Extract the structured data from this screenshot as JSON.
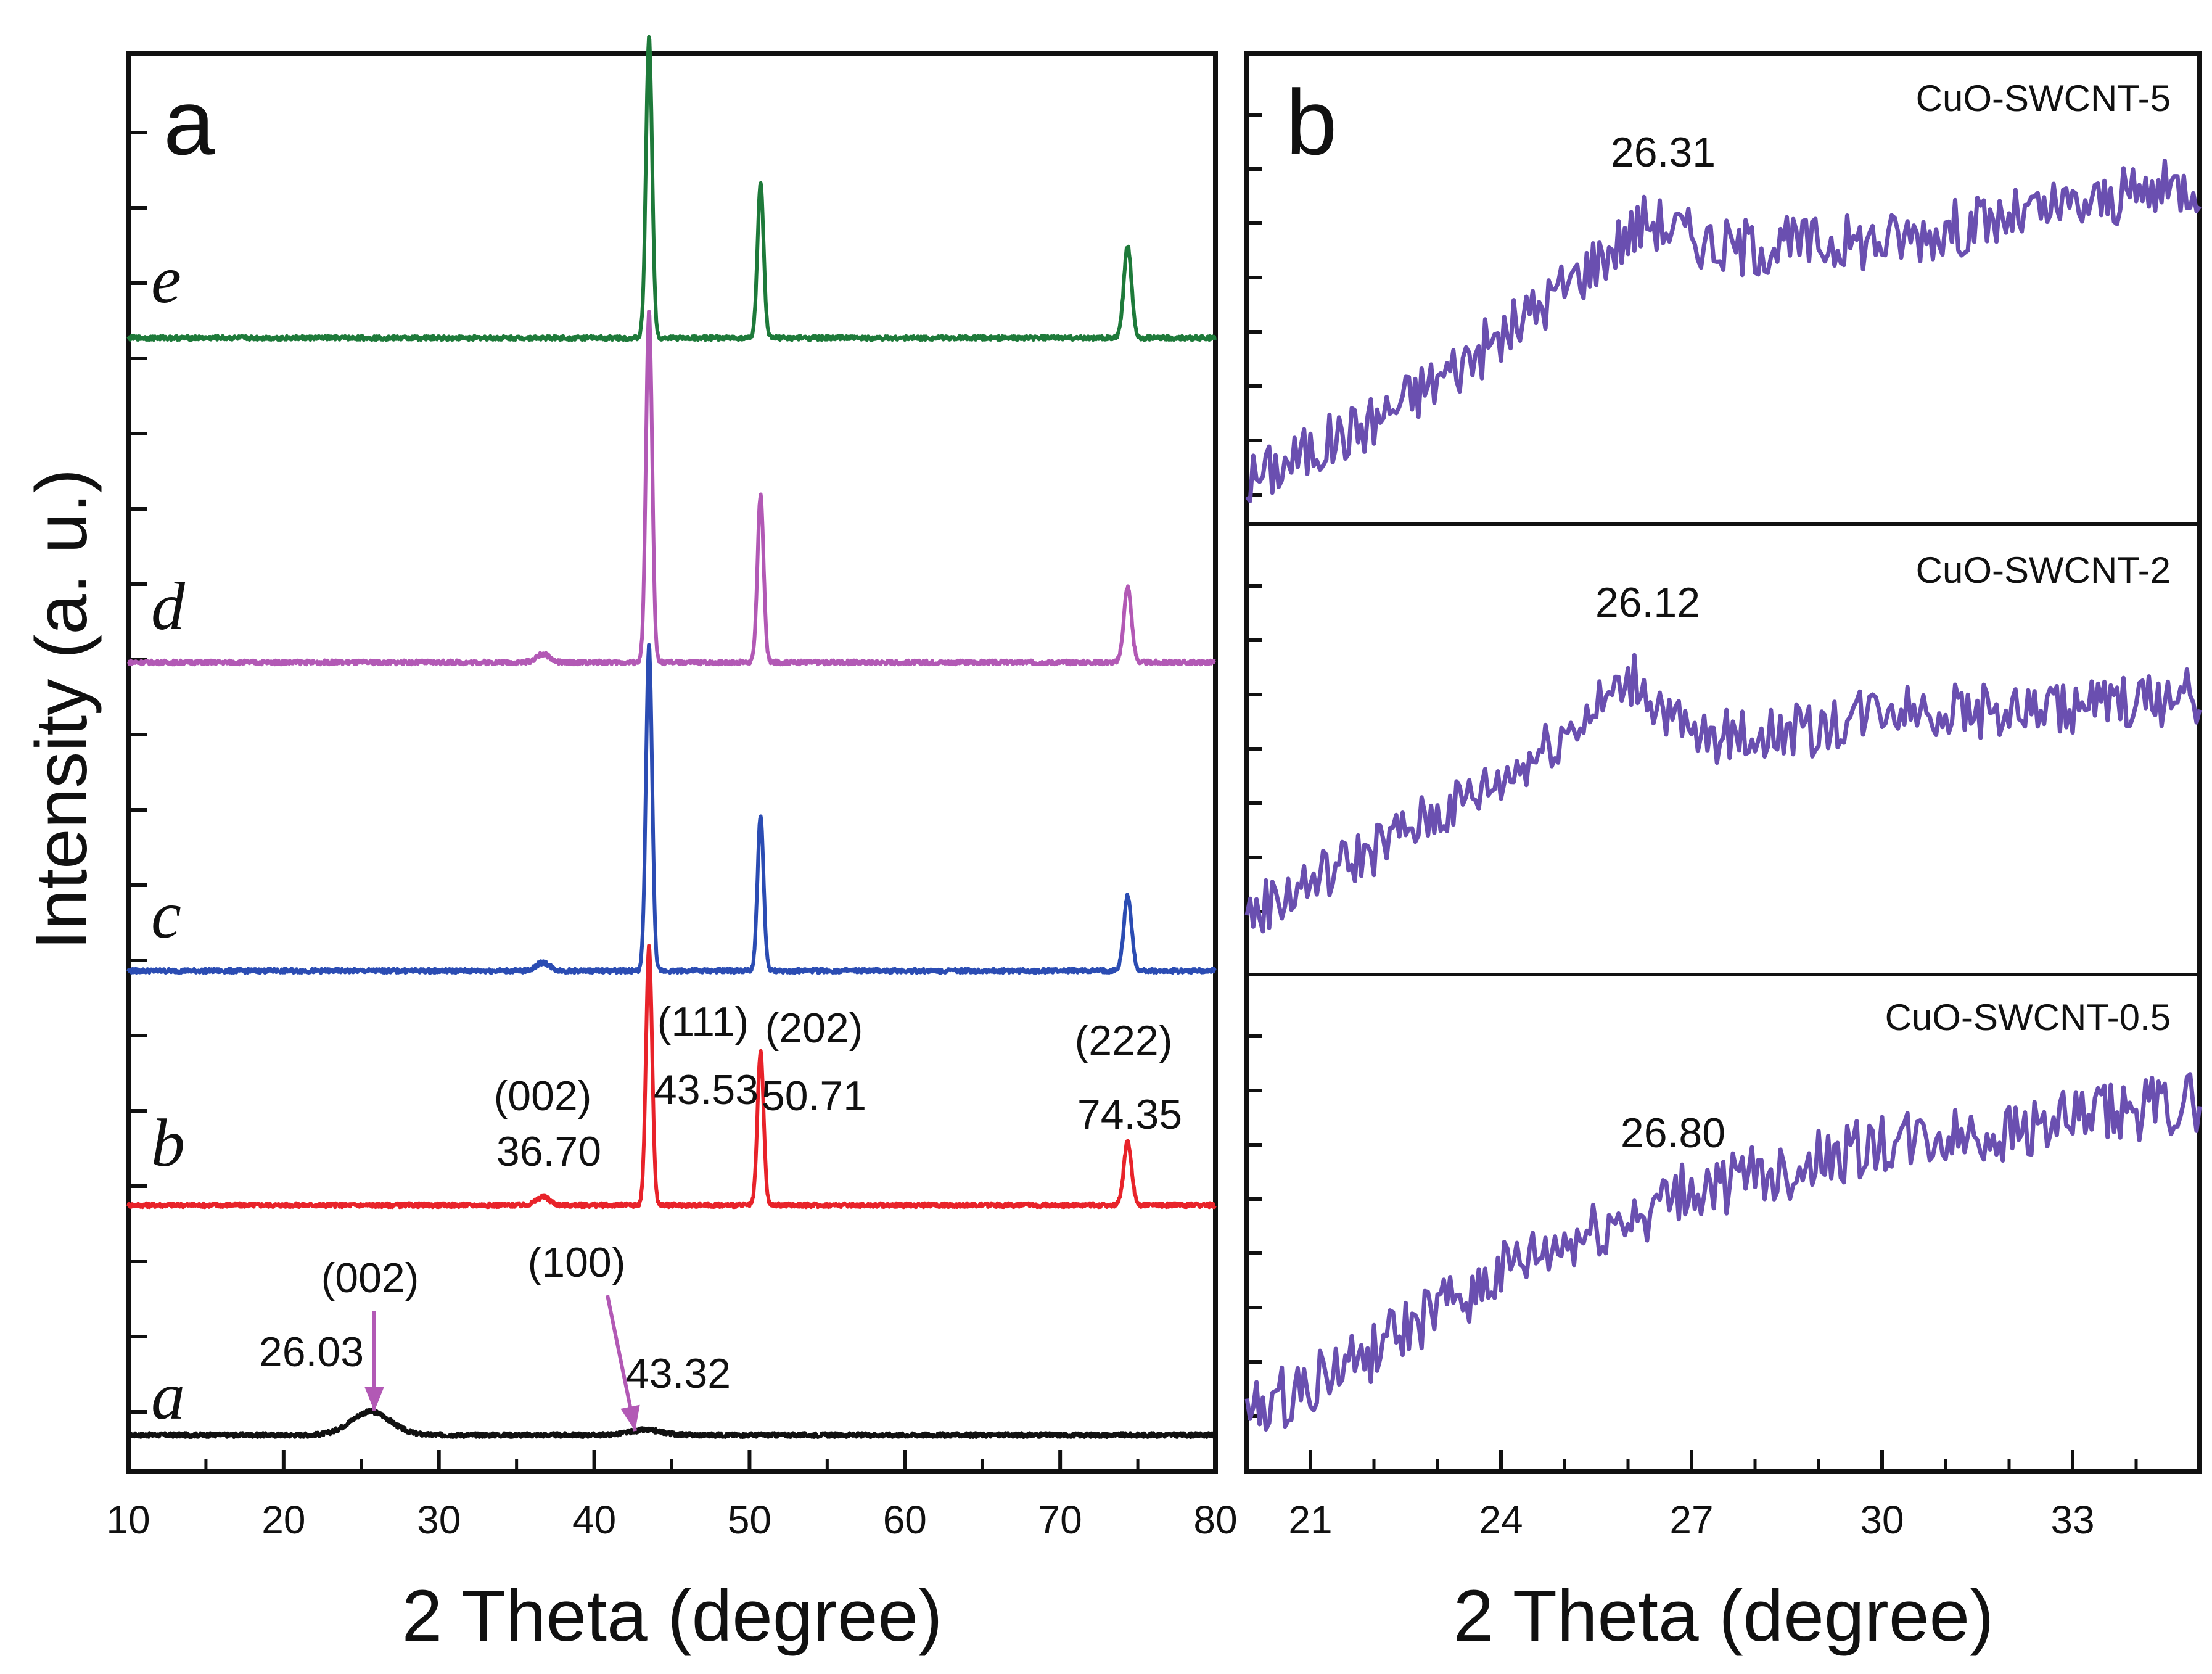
{
  "figure": {
    "y_label": "Intensity (a. u.)"
  },
  "chart_data": [
    {
      "type": "line",
      "panel_letter": "a",
      "xlabel": "2 Theta (degree)",
      "ylabel": "Intensity (a. u.)",
      "xlim": [
        10,
        80
      ],
      "xticks": [
        "10",
        "20",
        "30",
        "40",
        "50",
        "60",
        "70",
        "80"
      ],
      "stacked": true,
      "series": [
        {
          "name": "a",
          "color": "#111111",
          "x": [
            10,
            20,
            24,
            25.6,
            27,
            30,
            40,
            43.3,
            46,
            60,
            80
          ],
          "values": [
            0.02,
            0.05,
            0.1,
            0.16,
            0.1,
            0.05,
            0.03,
            0.05,
            0.03,
            0.02,
            0.01
          ]
        },
        {
          "name": "b",
          "color": "#e8232a",
          "x": [
            10,
            36.7,
            43.53,
            50.71,
            74.35,
            80
          ],
          "values": [
            0.03,
            0.08,
            1.55,
            0.92,
            0.38,
            0.03
          ]
        },
        {
          "name": "c",
          "color": "#2b4cb3",
          "x": [
            10,
            36.7,
            43.53,
            50.71,
            74.35,
            80
          ],
          "values": [
            0.03,
            0.08,
            1.95,
            0.92,
            0.45,
            0.03
          ]
        },
        {
          "name": "d",
          "color": "#b259b5",
          "x": [
            10,
            36.7,
            43.53,
            50.71,
            74.35,
            80
          ],
          "values": [
            0.03,
            0.08,
            2.1,
            1.0,
            0.45,
            0.03
          ]
        },
        {
          "name": "e",
          "color": "#1e7a3a",
          "x": [
            10,
            43.53,
            50.71,
            74.35,
            80
          ],
          "values": [
            0.03,
            1.8,
            0.92,
            0.55,
            0.03
          ]
        }
      ],
      "annotations": [
        {
          "series": "a",
          "lines": [
            "(002)",
            "26.03"
          ],
          "x": 25.6
        },
        {
          "series": "a",
          "lines": [
            "(100)",
            "43.32"
          ],
          "x": 43.3
        },
        {
          "series": "b",
          "lines": [
            "(002)",
            "36.70"
          ],
          "x": 36.7
        },
        {
          "series": "b",
          "lines": [
            "(111)",
            "43.53"
          ],
          "x": 43.53
        },
        {
          "series": "b",
          "lines": [
            "(202)",
            "50.71"
          ],
          "x": 50.71
        },
        {
          "series": "b",
          "lines": [
            "(222)",
            "74.35"
          ],
          "x": 74.35
        }
      ]
    },
    {
      "type": "line",
      "panel_letter": "b",
      "xlabel": "2 Theta (degree)",
      "xlim": [
        20,
        35
      ],
      "xticks": [
        "21",
        "24",
        "27",
        "30",
        "33"
      ],
      "subplots": [
        {
          "name": "CuO-SWCNT-5",
          "peak_label": "26.31",
          "color": "#6a4fb0",
          "x": [
            20,
            22,
            24,
            26.3,
            27.5,
            30,
            32,
            35
          ],
          "values": [
            0.05,
            0.22,
            0.45,
            0.78,
            0.7,
            0.72,
            0.78,
            0.88
          ]
        },
        {
          "name": "CuO-SWCNT-2",
          "peak_label": "26.12",
          "color": "#6a4fb0",
          "x": [
            20,
            22,
            24,
            26.1,
            27,
            29,
            30,
            32,
            35
          ],
          "values": [
            0.1,
            0.3,
            0.5,
            0.8,
            0.62,
            0.65,
            0.72,
            0.7,
            0.75
          ]
        },
        {
          "name": "CuO-SWCNT-0.5",
          "peak_label": "26.80",
          "color": "#6a4fb0",
          "x": [
            20,
            22,
            24,
            26.8,
            28,
            30,
            32,
            35
          ],
          "values": [
            0.08,
            0.25,
            0.45,
            0.65,
            0.7,
            0.78,
            0.82,
            0.9
          ]
        }
      ]
    }
  ]
}
